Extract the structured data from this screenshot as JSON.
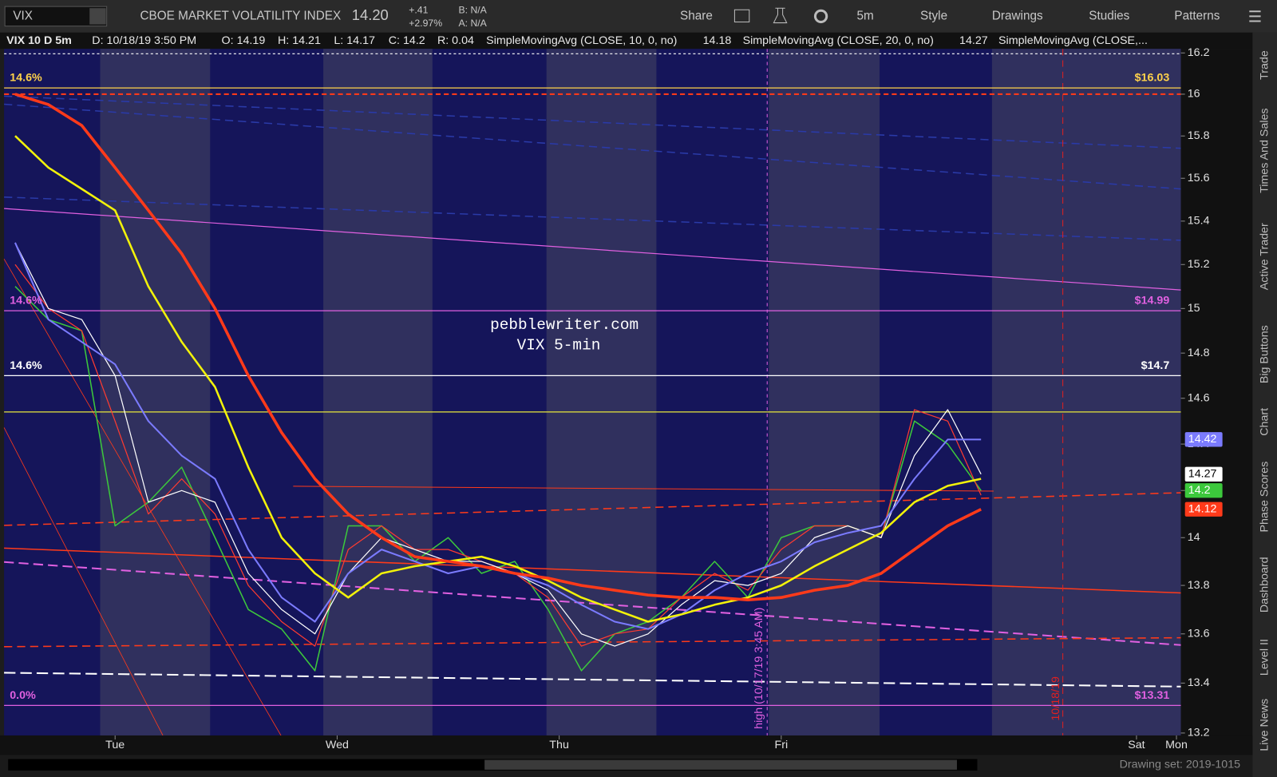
{
  "toolbar": {
    "symbol": "VIX",
    "description": "CBOE MARKET VOLATILITY INDEX",
    "last": "14.20",
    "change": "+.41",
    "change_pct": "+2.97%",
    "bid": "B: N/A",
    "ask": "A: N/A",
    "buttons": [
      "Share",
      "5m",
      "Style",
      "Drawings",
      "Studies",
      "Patterns"
    ]
  },
  "info_bar": [
    "VIX 10 D 5m",
    "D: 10/18/19 3:50 PM",
    "O: 14.19",
    "H: 14.21",
    "L: 14.17",
    "C: 14.2",
    "R: 0.04"
  ],
  "sidebar": [
    "Trade",
    "Times And Sales",
    "Active Trader",
    "Big Buttons",
    "Chart",
    "Phase Scores",
    "Dashboard",
    "Level II",
    "Live News"
  ],
  "footer": {
    "drawing_set": "Drawing set: 2019-1015"
  },
  "chart_data": {
    "type": "line",
    "log_scale": true,
    "xlim": [
      0.5,
      5.8
    ],
    "xticks": [
      {
        "value": 1,
        "label": "Tue"
      },
      {
        "value": 2,
        "label": "Wed"
      },
      {
        "value": 3,
        "label": "Thu"
      },
      {
        "value": 4,
        "label": "Fri"
      },
      {
        "value": 5.6,
        "label": "Sat"
      },
      {
        "value": 5.78,
        "label": "Mon"
      }
    ],
    "ylim": [
      13.2,
      16.2
    ],
    "yticks": [
      13.2,
      13.4,
      13.6,
      13.8,
      14,
      14.2,
      14.4,
      14.6,
      14.8,
      15,
      15.2,
      15.4,
      15.6,
      15.8,
      16,
      16.2
    ],
    "x": [
      0.55,
      0.7,
      0.85,
      1.0,
      1.15,
      1.3,
      1.45,
      1.6,
      1.75,
      1.9,
      2.05,
      2.2,
      2.35,
      2.5,
      2.65,
      2.8,
      2.95,
      3.1,
      3.25,
      3.4,
      3.55,
      3.7,
      3.85,
      4.0,
      4.15,
      4.3,
      4.45,
      4.6,
      4.75,
      4.9
    ],
    "series": [
      {
        "color": "#3cc83c",
        "line_width": 1.5,
        "last_tag": true,
        "values": [
          15.1,
          14.95,
          14.9,
          14.05,
          14.15,
          14.3,
          14.0,
          13.7,
          13.62,
          13.45,
          14.05,
          14.05,
          13.9,
          14.0,
          13.85,
          13.9,
          13.7,
          13.45,
          13.6,
          13.65,
          13.75,
          13.9,
          13.75,
          14.0,
          14.05,
          14.05,
          14.0,
          14.5,
          14.4,
          14.2
        ]
      },
      {
        "name": "SimpleMovingAvg (CLOSE, 10, 0, no)",
        "color": "#ff3b30",
        "line_width": 1.2,
        "last_tag": false,
        "values": [
          15.2,
          15.0,
          14.9,
          14.5,
          14.1,
          14.25,
          14.1,
          13.8,
          13.65,
          13.55,
          13.95,
          14.05,
          13.95,
          13.95,
          13.9,
          13.85,
          13.75,
          13.55,
          13.6,
          13.62,
          13.75,
          13.85,
          13.78,
          13.95,
          14.05,
          14.05,
          14.0,
          14.55,
          14.5,
          14.18
        ]
      },
      {
        "name": "SimpleMovingAvg (CLOSE, 20, 0, no)",
        "color": "#ffffff",
        "line_width": 1.2,
        "last_tag": true,
        "values": [
          15.3,
          15.0,
          14.95,
          14.7,
          14.15,
          14.2,
          14.15,
          13.85,
          13.7,
          13.6,
          13.85,
          14.0,
          13.95,
          13.9,
          13.9,
          13.85,
          13.78,
          13.6,
          13.55,
          13.6,
          13.72,
          13.82,
          13.8,
          13.85,
          14.0,
          14.05,
          14.0,
          14.35,
          14.55,
          14.27
        ]
      },
      {
        "name": "SimpleMovingAvg (CLOSE,...",
        "color": "#7b7bff",
        "line_width": 2,
        "last_tag": true,
        "values": [
          15.3,
          14.95,
          14.85,
          14.75,
          14.5,
          14.35,
          14.25,
          13.95,
          13.75,
          13.65,
          13.85,
          13.95,
          13.9,
          13.85,
          13.88,
          13.85,
          13.8,
          13.72,
          13.65,
          13.62,
          13.68,
          13.78,
          13.85,
          13.9,
          13.98,
          14.02,
          14.05,
          14.25,
          14.42,
          14.42
        ]
      },
      {
        "color": "#f2f20a",
        "line_width": 2.5,
        "last_tag": false,
        "values": [
          15.8,
          15.65,
          15.55,
          15.45,
          15.1,
          14.85,
          14.65,
          14.3,
          14.0,
          13.85,
          13.75,
          13.85,
          13.88,
          13.9,
          13.92,
          13.88,
          13.82,
          13.75,
          13.7,
          13.65,
          13.68,
          13.72,
          13.75,
          13.8,
          13.88,
          13.95,
          14.02,
          14.15,
          14.22,
          14.25
        ]
      },
      {
        "color": "#ff3a1a",
        "line_width": 3.5,
        "last_tag": true,
        "values": [
          16.0,
          15.95,
          15.85,
          15.65,
          15.45,
          15.25,
          15.0,
          14.7,
          14.45,
          14.25,
          14.1,
          14.0,
          13.92,
          13.9,
          13.88,
          13.85,
          13.83,
          13.8,
          13.78,
          13.76,
          13.75,
          13.75,
          13.74,
          13.75,
          13.78,
          13.8,
          13.85,
          13.95,
          14.05,
          14.12
        ]
      }
    ],
    "levels": [
      {
        "value": 16.03,
        "label": "$16.03",
        "color": "#ffd24a",
        "left_label": "14.6%",
        "dashed": false
      },
      {
        "value": 16,
        "color": "#ff3a1a",
        "dashed": true
      },
      {
        "value": 14.99,
        "label": "$14.99",
        "color": "#e060e0",
        "left_label": "14.6%",
        "dashed": false
      },
      {
        "value": 14.7,
        "label": "$14.7",
        "color": "#ffffff",
        "left_label": "14.6%",
        "dashed": false
      },
      {
        "value": 14.54,
        "color": "#e8e83a",
        "dashed": false
      },
      {
        "value": 13.31,
        "label": "$13.31",
        "color": "#e060e0",
        "left_label": "0.0%",
        "dashed": false
      }
    ],
    "annotations": [
      "pebblewriter.com",
      "VIX 5-min",
      "high (10/17/19 3:45 AM)",
      "10/18/19"
    ]
  }
}
